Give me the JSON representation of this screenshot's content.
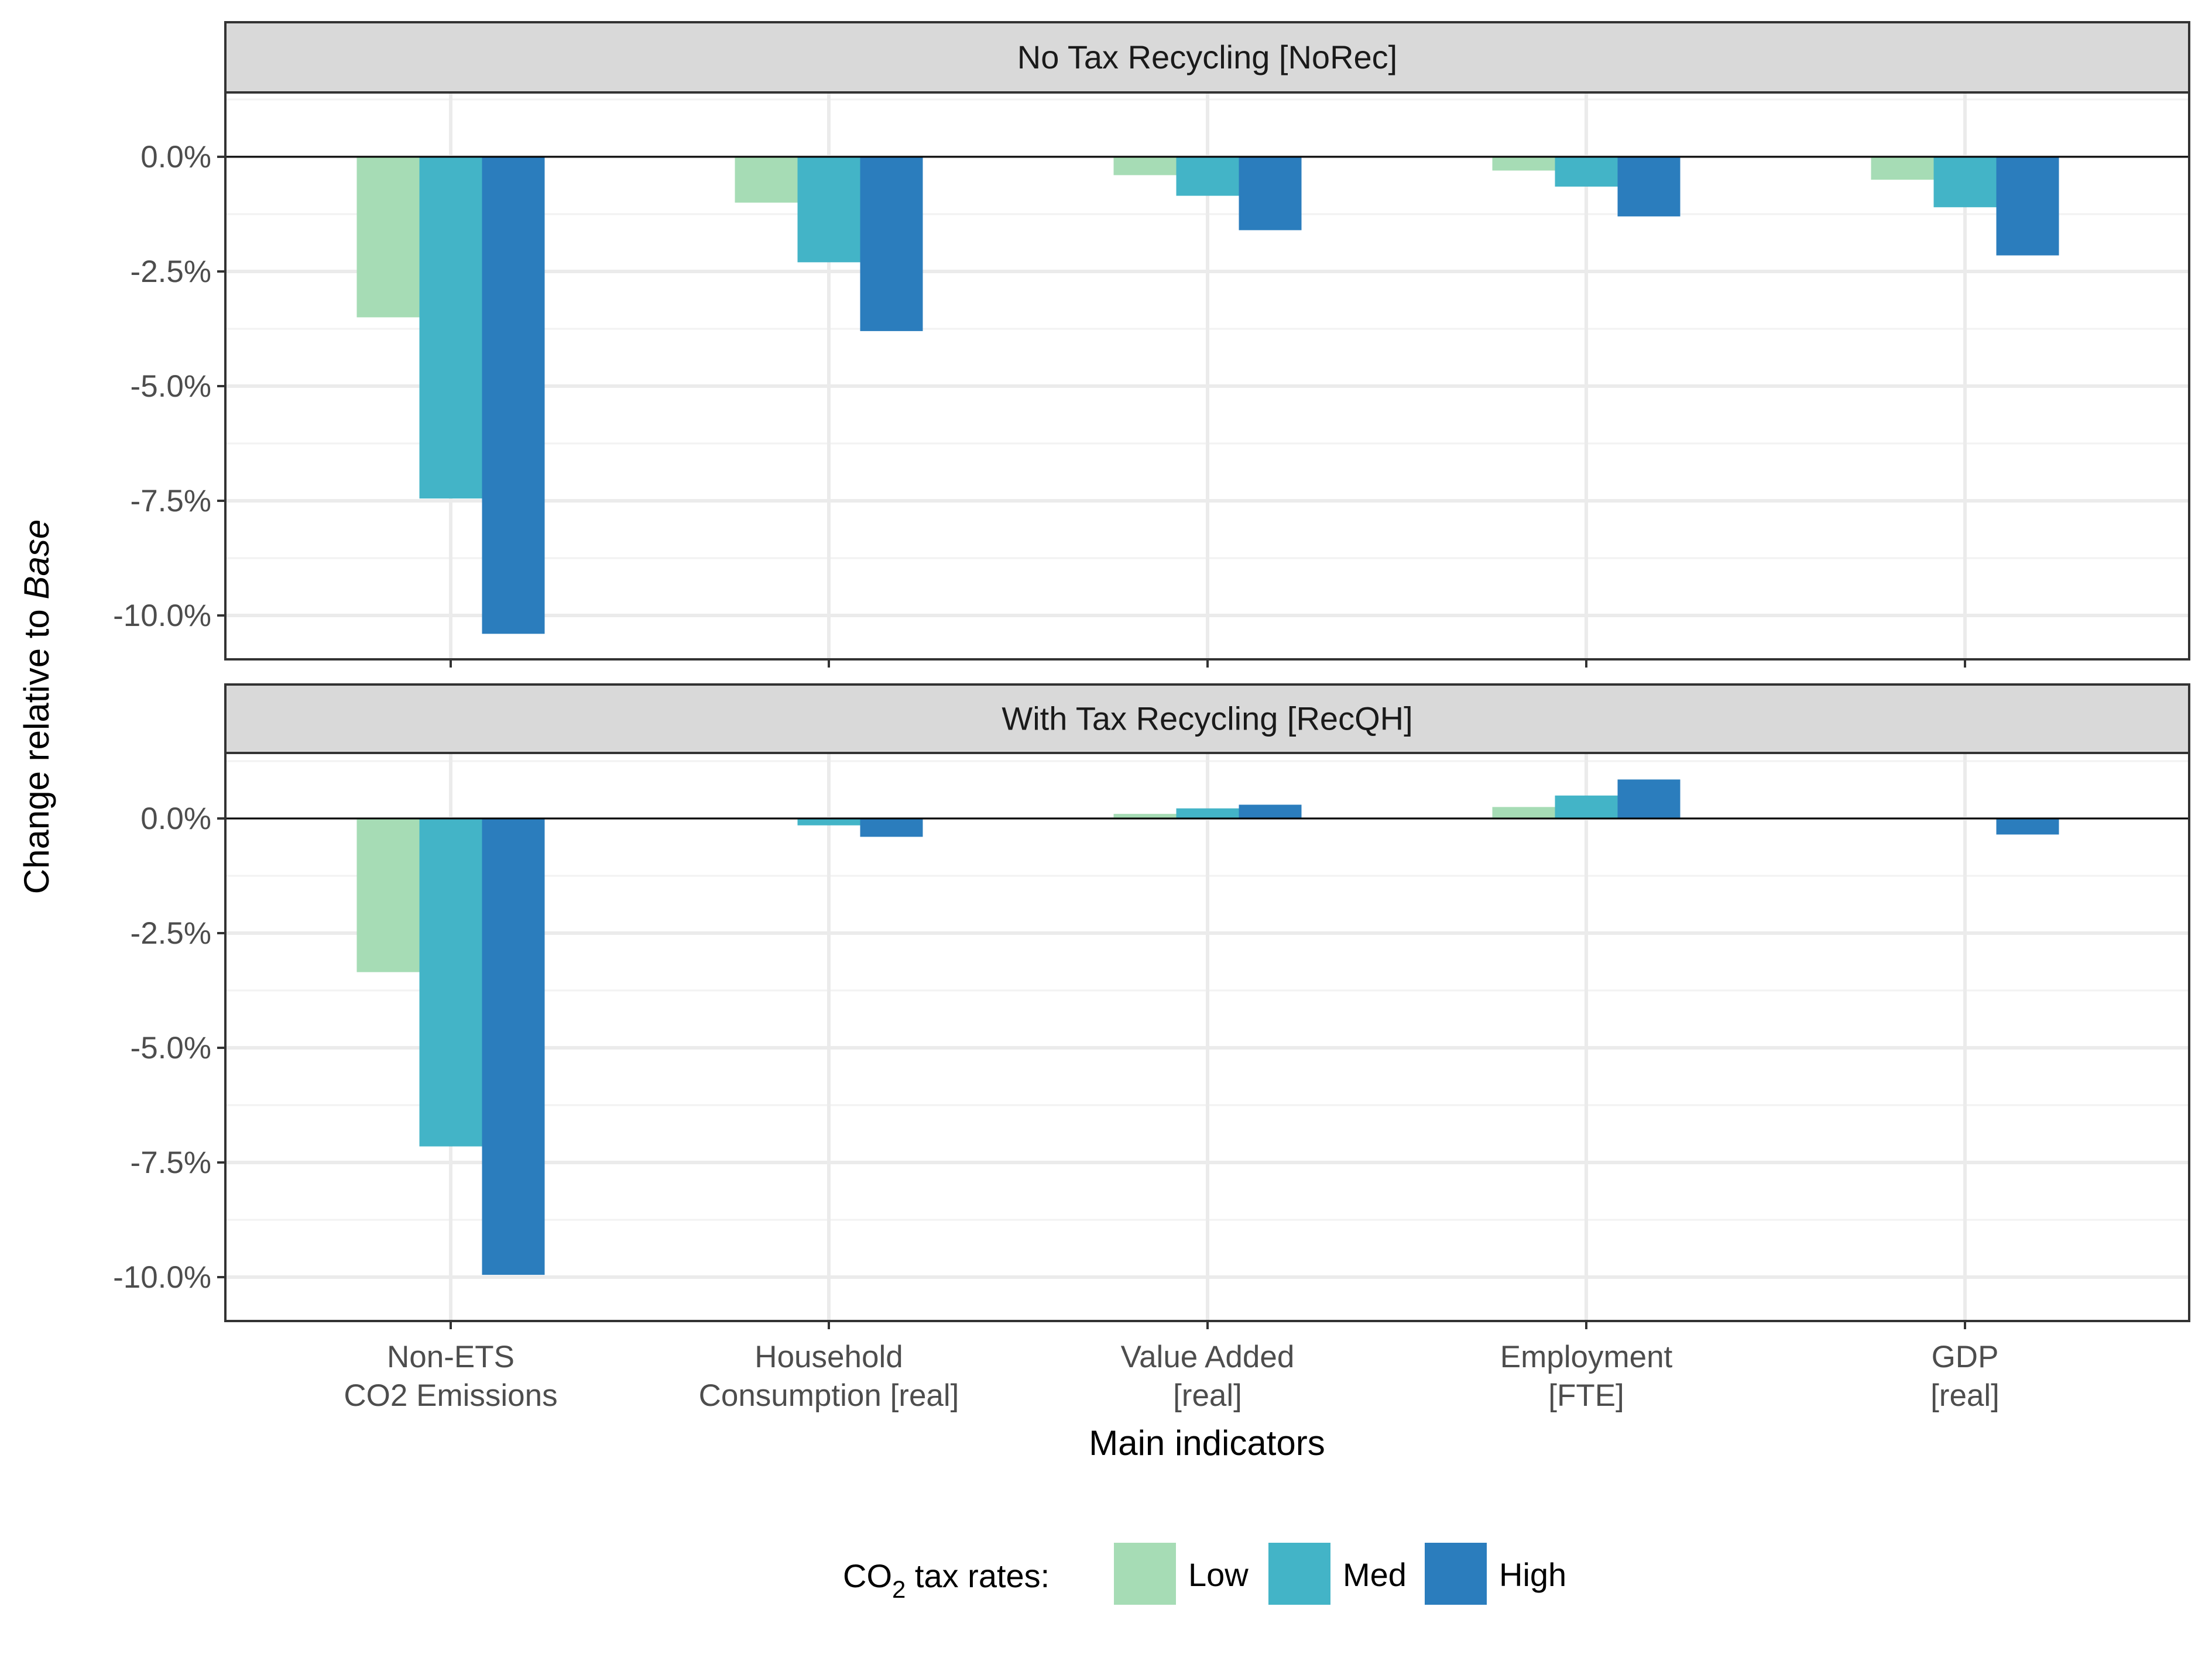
{
  "chart_data": {
    "type": "bar",
    "facet_titles": [
      "No Tax Recycling [NoRec]",
      "With Tax Recycling [RecQH]"
    ],
    "categories": [
      [
        "Non-ETS",
        "CO2 Emissions"
      ],
      [
        "Household",
        "Consumption [real]"
      ],
      [
        "Value Added",
        "[real]"
      ],
      [
        "Employment",
        "[FTE]"
      ],
      [
        "GDP",
        "[real]"
      ]
    ],
    "xlabel": "Main indicators",
    "ylabel_prefix": "Change relative to ",
    "ylabel_italic": "Base",
    "ylim": [
      -11.0,
      1.5
    ],
    "yticks": [
      0,
      -2.5,
      -5.0,
      -7.5,
      -10.0
    ],
    "ytick_labels": [
      "0.0%",
      "-2.5%",
      "-5.0%",
      "-7.5%",
      "-10.0%"
    ],
    "legend_title_main": "CO",
    "legend_title_sub": "2",
    "legend_title_rest": " tax rates:",
    "legend_position": "bottom",
    "grid": true,
    "series": [
      {
        "name": "Low",
        "color": "#a6dcb5"
      },
      {
        "name": "Med",
        "color": "#43b4c7"
      },
      {
        "name": "High",
        "color": "#2b7dbd"
      }
    ],
    "panels": [
      {
        "title": "No Tax Recycling [NoRec]",
        "values": {
          "Low": [
            -3.5,
            -1.0,
            -0.4,
            -0.3,
            -0.5
          ],
          "Med": [
            -7.45,
            -2.3,
            -0.85,
            -0.65,
            -1.1
          ],
          "High": [
            -10.4,
            -3.8,
            -1.6,
            -1.3,
            -2.15
          ]
        }
      },
      {
        "title": "With Tax Recycling [RecQH]",
        "values": {
          "Low": [
            -3.35,
            0.0,
            0.1,
            0.25,
            0.0
          ],
          "Med": [
            -7.15,
            -0.15,
            0.22,
            0.5,
            0.0
          ],
          "High": [
            -9.95,
            -0.4,
            0.3,
            0.85,
            -0.35
          ]
        }
      }
    ]
  }
}
